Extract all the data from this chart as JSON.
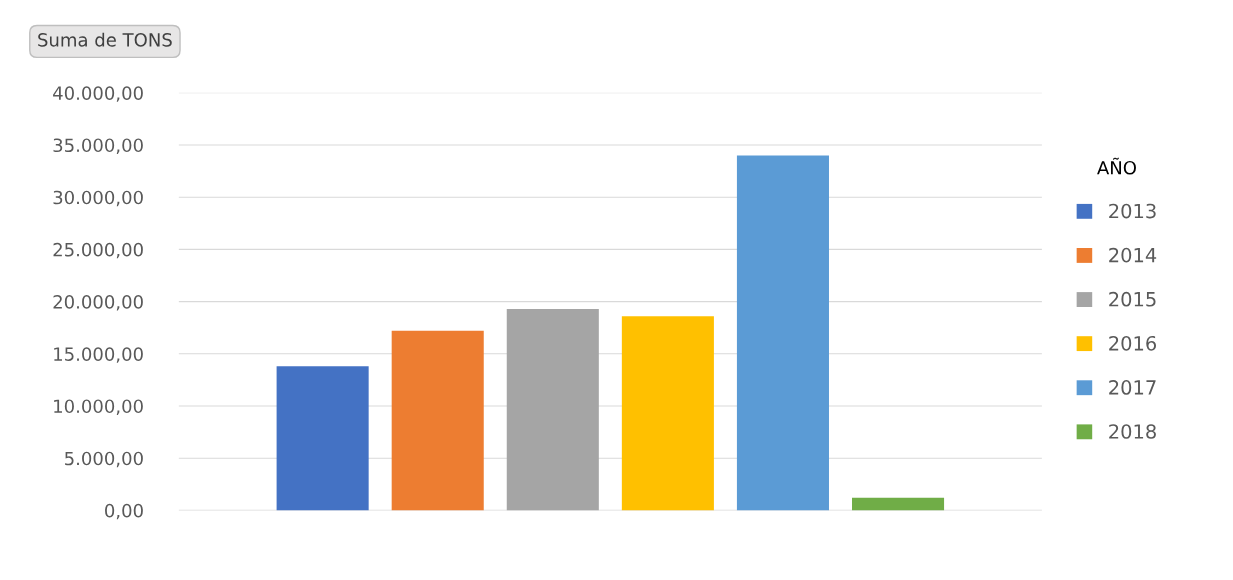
{
  "chart_data": {
    "type": "bar",
    "categories": [
      null
    ],
    "series": [
      {
        "name": "2013",
        "color": "#4472c4",
        "values": [
          13800
        ]
      },
      {
        "name": "2014",
        "color": "#ed7d31",
        "values": [
          17200
        ]
      },
      {
        "name": "2015",
        "color": "#a5a5a5",
        "values": [
          19300
        ]
      },
      {
        "name": "2016",
        "color": "#ffc000",
        "values": [
          18600
        ]
      },
      {
        "name": "2017",
        "color": "#5b9bd5",
        "values": [
          34000
        ]
      },
      {
        "name": "2018",
        "color": "#70ad47",
        "values": [
          1200
        ]
      }
    ],
    "ylim": [
      0,
      40000
    ],
    "yticks": [
      {
        "value": 0,
        "label": "0,00"
      },
      {
        "value": 5000,
        "label": "5.000,00"
      },
      {
        "value": 10000,
        "label": "10.000,00"
      },
      {
        "value": 15000,
        "label": "15.000,00"
      },
      {
        "value": 20000,
        "label": "20.000,00"
      },
      {
        "value": 25000,
        "label": "25.000,00"
      },
      {
        "value": 30000,
        "label": "30.000,00"
      },
      {
        "value": 35000,
        "label": "35.000,00"
      },
      {
        "value": 40000,
        "label": "40.000,00"
      }
    ],
    "grid": "y",
    "legend": "right",
    "legend_title": "AÑO",
    "annotations": [
      "Suma de TONS"
    ]
  }
}
